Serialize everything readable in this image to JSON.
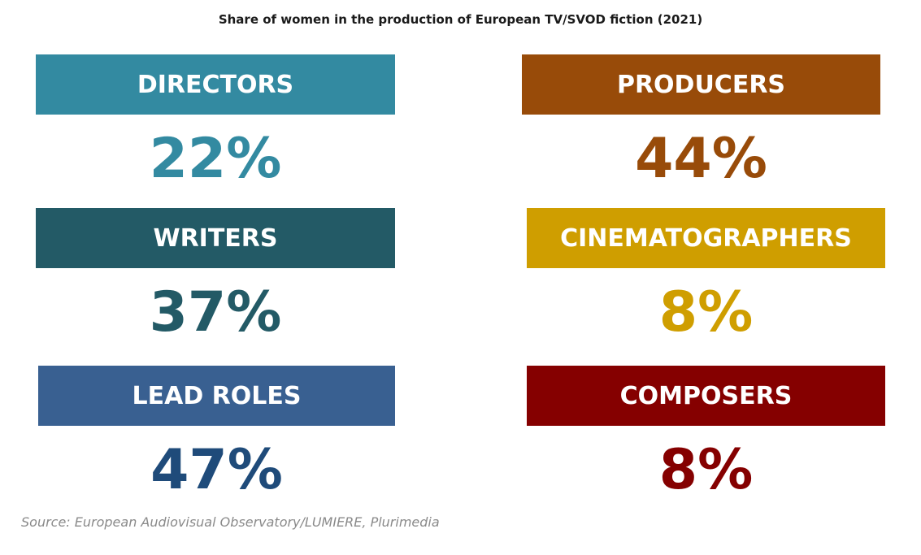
{
  "title": "Share of women in the production of European TV/SVOD fiction (2021)",
  "source": "Source: European Audiovisual Observatory/LUMIERE, Plurimedia",
  "chart_data": {
    "type": "table",
    "title": "Share of women in the production of European TV/SVOD fiction (2021)",
    "unit": "%",
    "categories": [
      "DIRECTORS",
      "PRODUCERS",
      "WRITERS",
      "CINEMATOGRAPHERS",
      "LEAD ROLES",
      "COMPOSERS"
    ],
    "values": [
      22,
      44,
      37,
      8,
      47,
      8
    ],
    "cards": [
      {
        "label": "DIRECTORS",
        "value": 22,
        "display": "22%",
        "banner_color": "#338aa1",
        "value_color": "#338aa1"
      },
      {
        "label": "PRODUCERS",
        "value": 44,
        "display": "44%",
        "banner_color": "#984b09",
        "value_color": "#984b09"
      },
      {
        "label": "WRITERS",
        "value": 37,
        "display": "37%",
        "banner_color": "#235a66",
        "value_color": "#235a66"
      },
      {
        "label": "CINEMATOGRAPHERS",
        "value": 8,
        "display": "8%",
        "banner_color": "#cf9e00",
        "value_color": "#cf9e00"
      },
      {
        "label": "LEAD ROLES",
        "value": 47,
        "display": "47%",
        "banner_color": "#396091",
        "value_color": "#1f4b7a"
      },
      {
        "label": "COMPOSERS",
        "value": 8,
        "display": "8%",
        "banner_color": "#850000",
        "value_color": "#850000"
      }
    ]
  }
}
